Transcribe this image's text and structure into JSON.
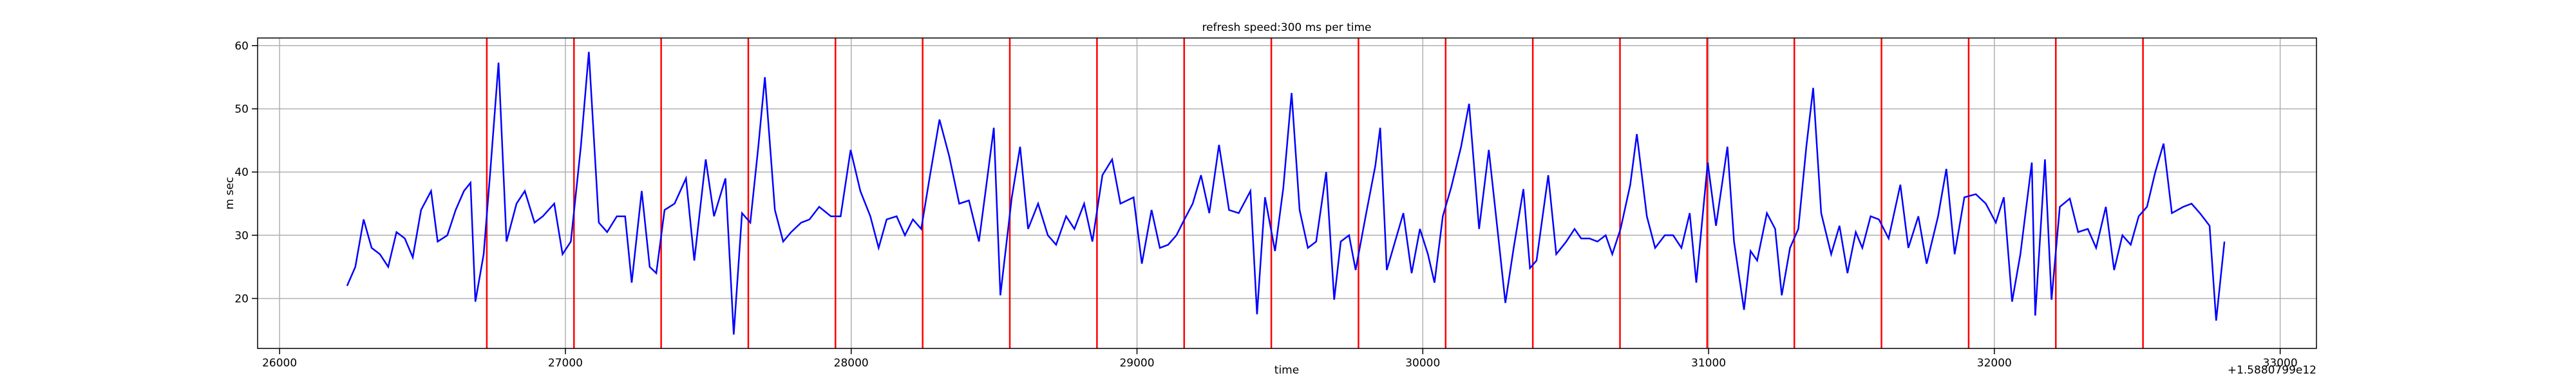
{
  "chart_data": {
    "type": "line",
    "title": "refresh speed:300 ms per time",
    "x_label": "time",
    "y_label": "m sec",
    "x_offset_label": "+1.5880799e12",
    "xlim": [
      25923,
      33127
    ],
    "ylim": [
      12.1,
      61.2
    ],
    "xticks": [
      26000,
      27000,
      28000,
      29000,
      30000,
      31000,
      32000,
      33000
    ],
    "yticks": [
      20,
      30,
      40,
      50,
      60
    ],
    "grid": true,
    "vlines": {
      "color": "#ff0000",
      "x": [
        26725,
        27030,
        27335,
        27640,
        27945,
        28250,
        28555,
        28860,
        29165,
        29470,
        29775,
        30080,
        30385,
        30690,
        30995,
        31300,
        31605,
        31910,
        32215,
        32520
      ]
    },
    "series": [
      {
        "color": "#0000ff",
        "x": [
          26236,
          26265,
          26294,
          26322,
          26351,
          26380,
          26409,
          26438,
          26466,
          26495,
          26530,
          26553,
          26587,
          26616,
          26645,
          26668,
          26685,
          26714,
          26737,
          26766,
          26794,
          26829,
          26858,
          26892,
          26921,
          26961,
          26990,
          27019,
          27054,
          27082,
          27117,
          27146,
          27180,
          27209,
          27232,
          27267,
          27295,
          27318,
          27347,
          27382,
          27422,
          27451,
          27491,
          27520,
          27560,
          27589,
          27618,
          27647,
          27675,
          27698,
          27733,
          27762,
          27790,
          27825,
          27854,
          27888,
          27929,
          27963,
          27998,
          28032,
          28067,
          28096,
          28124,
          28159,
          28188,
          28216,
          28245,
          28274,
          28309,
          28343,
          28378,
          28412,
          28447,
          28476,
          28499,
          28522,
          28562,
          28591,
          28619,
          28654,
          28688,
          28717,
          28752,
          28781,
          28815,
          28844,
          28879,
          28913,
          28942,
          28988,
          29017,
          29051,
          29080,
          29109,
          29138,
          29166,
          29195,
          29224,
          29253,
          29287,
          29322,
          29356,
          29397,
          29420,
          29448,
          29483,
          29512,
          29541,
          29569,
          29598,
          29627,
          29662,
          29690,
          29713,
          29742,
          29765,
          29800,
          29834,
          29851,
          29874,
          29903,
          29932,
          29961,
          29990,
          30018,
          30041,
          30070,
          30099,
          30134,
          30162,
          30197,
          30231,
          30266,
          30289,
          30318,
          30352,
          30375,
          30398,
          30439,
          30467,
          30502,
          30531,
          30554,
          30583,
          30611,
          30640,
          30663,
          30692,
          30726,
          30749,
          30784,
          30813,
          30847,
          30876,
          30905,
          30934,
          30957,
          30997,
          31026,
          31066,
          31089,
          31124,
          31147,
          31170,
          31204,
          31233,
          31256,
          31285,
          31314,
          31342,
          31366,
          31394,
          31429,
          31458,
          31486,
          31515,
          31538,
          31567,
          31596,
          31630,
          31671,
          31699,
          31734,
          31763,
          31803,
          31832,
          31861,
          31895,
          31935,
          31970,
          32005,
          32033,
          32062,
          32091,
          32131,
          32143,
          32177,
          32200,
          32229,
          32264,
          32293,
          32327,
          32356,
          32390,
          32419,
          32448,
          32477,
          32505,
          32534,
          32563,
          32592,
          32621,
          32661,
          32690,
          32719,
          32753,
          32776,
          32805
        ],
        "values": [
          22,
          25,
          32.5,
          28,
          27,
          25,
          30.5,
          29.5,
          26.5,
          34,
          37,
          29,
          30,
          34,
          37,
          38.3,
          19.5,
          27,
          40,
          57.3,
          29,
          35,
          37,
          32,
          33,
          35,
          27,
          29,
          44,
          59,
          32,
          30.5,
          33,
          33,
          22.5,
          37,
          25,
          24,
          34,
          35,
          39,
          26,
          42,
          33,
          39,
          14.3,
          33.5,
          32,
          44,
          55,
          34,
          29,
          30.5,
          32,
          32.5,
          34.5,
          33,
          33,
          43.5,
          37,
          33,
          28,
          32.5,
          33,
          30,
          32.5,
          31,
          39,
          48.3,
          42.5,
          35,
          35.5,
          29,
          39,
          47,
          20.5,
          36,
          44,
          31,
          35,
          30,
          28.5,
          33,
          31,
          35,
          29,
          39.5,
          42,
          35,
          36,
          25.5,
          34,
          28,
          28.5,
          30,
          32.5,
          35,
          39.5,
          33.5,
          44.3,
          34,
          33.5,
          37,
          17.5,
          36,
          27.5,
          37.5,
          52.5,
          34,
          28,
          29,
          40,
          19.8,
          29,
          30,
          24.5,
          33,
          41,
          47,
          24.5,
          29,
          33.5,
          24,
          31,
          27,
          22.5,
          33,
          37.5,
          44,
          50.8,
          31,
          43.5,
          29,
          19.3,
          28,
          37.3,
          24.8,
          26,
          39.5,
          27,
          29,
          31,
          29.5,
          29.5,
          29,
          30,
          27,
          31,
          38,
          46,
          33,
          28,
          30,
          30,
          28,
          33.5,
          22.5,
          41.5,
          31.5,
          44,
          29,
          18.2,
          27.5,
          26,
          33.5,
          31,
          20.5,
          28,
          31,
          44,
          53.3,
          33.5,
          27,
          31.5,
          24,
          30.5,
          28,
          33,
          32.5,
          29.5,
          38,
          28,
          33,
          25.5,
          33,
          40.5,
          27,
          36,
          36.5,
          35,
          32,
          36,
          19.5,
          27,
          41.5,
          17.3,
          42,
          19.8,
          34.5,
          35.8,
          30.5,
          31,
          28,
          34.5,
          24.5,
          30,
          28.5,
          33,
          34.5,
          40,
          44.5,
          33.5,
          34.5,
          35,
          33.5,
          31.5,
          16.5,
          29
        ]
      }
    ]
  }
}
